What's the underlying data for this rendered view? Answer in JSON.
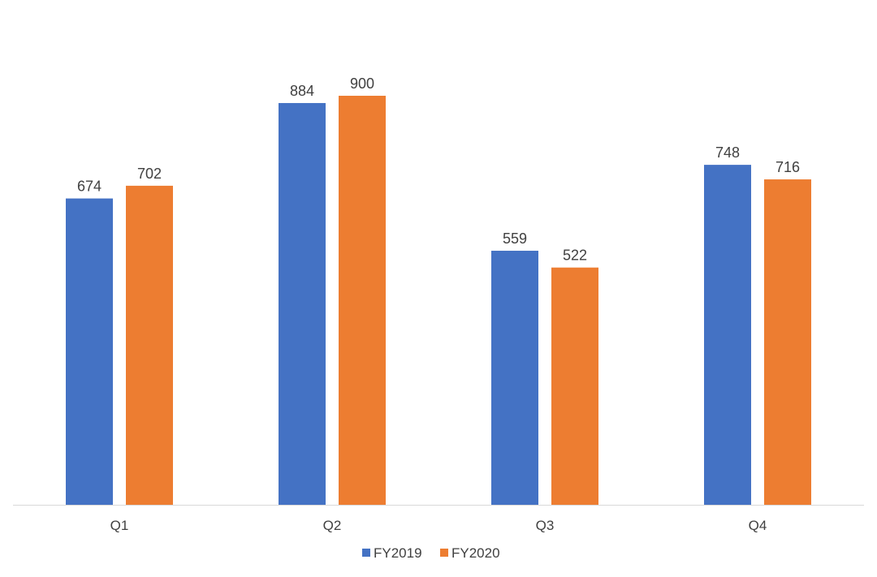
{
  "chart_data": {
    "type": "bar",
    "categories": [
      "Q1",
      "Q2",
      "Q3",
      "Q4"
    ],
    "series": [
      {
        "name": "FY2019",
        "values": [
          674,
          884,
          559,
          748
        ],
        "color": "#4472C4"
      },
      {
        "name": "FY2020",
        "values": [
          702,
          900,
          522,
          716
        ],
        "color": "#ED7D31"
      }
    ],
    "ylim": [
      0,
      1000
    ],
    "grid": false,
    "data_labels": true,
    "legend_position": "bottom"
  },
  "colors": {
    "axis_line": "#D9D9D9",
    "text": "#404040"
  }
}
